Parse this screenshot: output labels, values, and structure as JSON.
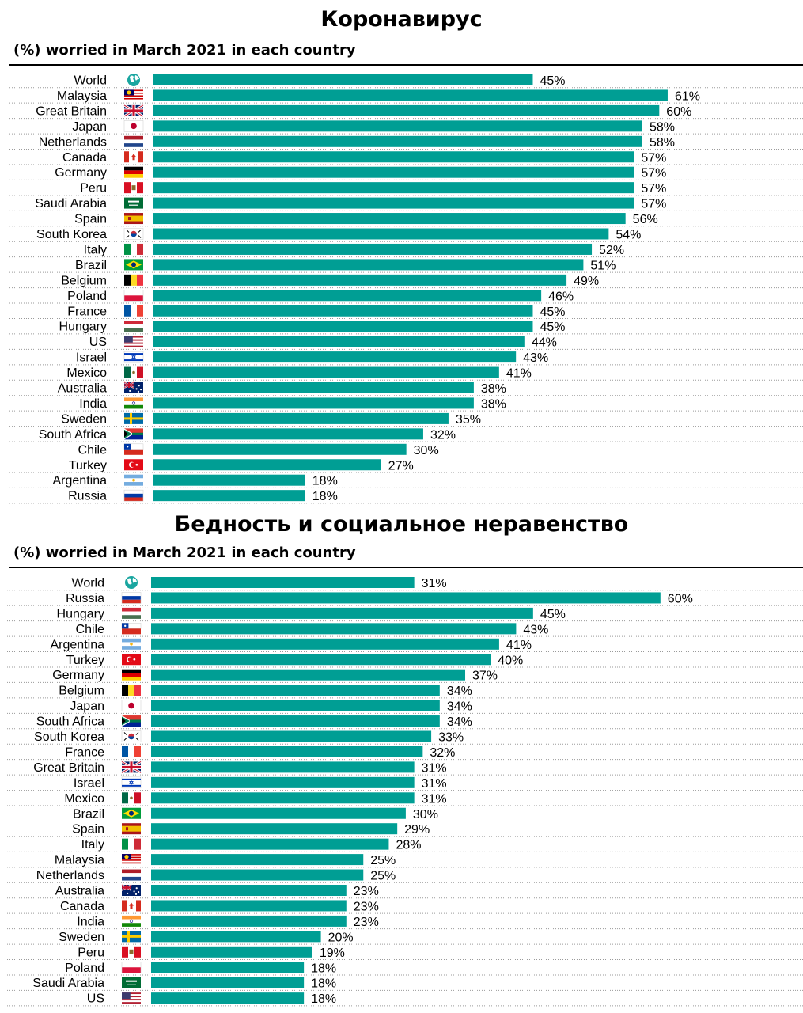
{
  "panels": [
    {
      "title": "Коронавирус",
      "subtitle": "(%) worried in March 2021 in each country"
    },
    {
      "title": "Бедность и социальное неравенство",
      "subtitle": "(%) worried in March 2021 in each country"
    }
  ],
  "chart_data": [
    {
      "type": "bar",
      "orientation": "horizontal",
      "title": "Коронавирус",
      "subtitle": "(%) worried in March 2021 in each country",
      "bar_color": "#009e94",
      "categories": [
        "World",
        "Malaysia",
        "Great Britain",
        "Japan",
        "Netherlands",
        "Canada",
        "Germany",
        "Peru",
        "Saudi Arabia",
        "Spain",
        "South Korea",
        "Italy",
        "Brazil",
        "Belgium",
        "Poland",
        "France",
        "Hungary",
        "US",
        "Israel",
        "Mexico",
        "Australia",
        "India",
        "Sweden",
        "South Africa",
        "Chile",
        "Turkey",
        "Argentina",
        "Russia"
      ],
      "flags": [
        "globe",
        "malaysia",
        "great-britain",
        "japan",
        "netherlands",
        "canada",
        "germany",
        "peru",
        "saudi-arabia",
        "spain",
        "south-korea",
        "italy",
        "brazil",
        "belgium",
        "poland",
        "france",
        "hungary",
        "us",
        "israel",
        "mexico",
        "australia",
        "india",
        "sweden",
        "south-africa",
        "chile",
        "turkey",
        "argentina",
        "russia"
      ],
      "values": [
        45,
        61,
        60,
        58,
        58,
        57,
        57,
        57,
        57,
        56,
        54,
        52,
        51,
        49,
        46,
        45,
        45,
        44,
        43,
        41,
        38,
        38,
        35,
        32,
        30,
        27,
        18,
        18
      ],
      "labels": [
        "45%",
        "61%",
        "60%",
        "58%",
        "58%",
        "57%",
        "57%",
        "57%",
        "57%",
        "56%",
        "54%",
        "52%",
        "51%",
        "49%",
        "46%",
        "45%",
        "45%",
        "44%",
        "43%",
        "41%",
        "38%",
        "38%",
        "35%",
        "32%",
        "30%",
        "27%",
        "18%",
        "18%"
      ]
    },
    {
      "type": "bar",
      "orientation": "horizontal",
      "title": "Бедность и социальное неравенство",
      "subtitle": "(%) worried in March 2021 in each country",
      "bar_color": "#009e94",
      "categories": [
        "World",
        "Russia",
        "Hungary",
        "Chile",
        "Argentina",
        "Turkey",
        "Germany",
        "Belgium",
        "Japan",
        "South Africa",
        "South Korea",
        "France",
        "Great Britain",
        "Israel",
        "Mexico",
        "Brazil",
        "Spain",
        "Italy",
        "Malaysia",
        "Netherlands",
        "Australia",
        "Canada",
        "India",
        "Sweden",
        "Peru",
        "Poland",
        "Saudi Arabia",
        "US"
      ],
      "flags": [
        "globe",
        "russia",
        "hungary",
        "chile",
        "argentina",
        "turkey",
        "germany",
        "belgium",
        "japan",
        "south-africa",
        "south-korea",
        "france",
        "great-britain",
        "israel",
        "mexico",
        "brazil",
        "spain",
        "italy",
        "malaysia",
        "netherlands",
        "australia",
        "canada",
        "india",
        "sweden",
        "peru",
        "poland",
        "saudi-arabia",
        "us"
      ],
      "values": [
        31,
        60,
        45,
        43,
        41,
        40,
        37,
        34,
        34,
        34,
        33,
        32,
        31,
        31,
        31,
        30,
        29,
        28,
        25,
        25,
        23,
        23,
        23,
        20,
        19,
        18,
        18,
        18
      ],
      "labels": [
        "31%",
        "60%",
        "45%",
        "43%",
        "41%",
        "40%",
        "37%",
        "34%",
        "34%",
        "34%",
        "33%",
        "32%",
        "31%",
        "31%",
        "31%",
        "30%",
        "29%",
        "28%",
        "25%",
        "25%",
        "23%",
        "23%",
        "23%",
        "20%",
        "19%",
        "18%",
        "18%",
        "18%"
      ]
    }
  ]
}
